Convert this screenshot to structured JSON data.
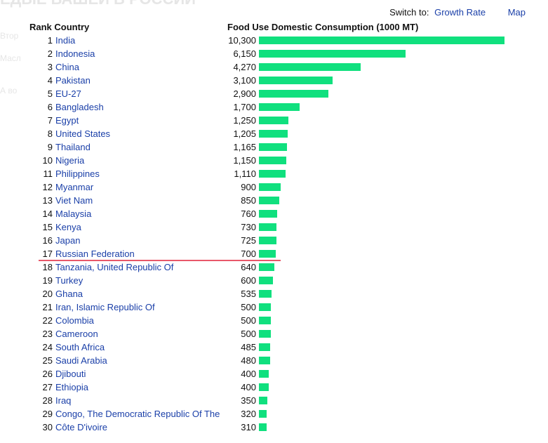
{
  "background_fragments": {
    "title": "ЕДЫЕ ВАШЕЙ В РОССИИ",
    "line1": "Втор",
    "line2": "Масл",
    "line3": "А во"
  },
  "switch": {
    "label": "Switch to:",
    "growth_rate": "Growth Rate",
    "map": "Map"
  },
  "colors": {
    "bar": "#10e07e",
    "link": "#1a3fa8",
    "cutoff_line": "#e8586a"
  },
  "chart_data": {
    "type": "bar",
    "orientation": "horizontal",
    "title": "",
    "rank_header": "Rank Country",
    "value_header": "Food Use Domestic Consumption (1000 MT)",
    "xlim": [
      0,
      10300
    ],
    "highlight_after_rank": 17,
    "rows": [
      {
        "rank": 1,
        "country": "India",
        "value": 10300,
        "label": "10,300"
      },
      {
        "rank": 2,
        "country": "Indonesia",
        "value": 6150,
        "label": "6,150"
      },
      {
        "rank": 3,
        "country": "China",
        "value": 4270,
        "label": "4,270"
      },
      {
        "rank": 4,
        "country": "Pakistan",
        "value": 3100,
        "label": "3,100"
      },
      {
        "rank": 5,
        "country": "EU-27",
        "value": 2900,
        "label": "2,900"
      },
      {
        "rank": 6,
        "country": "Bangladesh",
        "value": 1700,
        "label": "1,700"
      },
      {
        "rank": 7,
        "country": "Egypt",
        "value": 1250,
        "label": "1,250"
      },
      {
        "rank": 8,
        "country": "United States",
        "value": 1205,
        "label": "1,205"
      },
      {
        "rank": 9,
        "country": "Thailand",
        "value": 1165,
        "label": "1,165"
      },
      {
        "rank": 10,
        "country": "Nigeria",
        "value": 1150,
        "label": "1,150"
      },
      {
        "rank": 11,
        "country": "Philippines",
        "value": 1110,
        "label": "1,110"
      },
      {
        "rank": 12,
        "country": "Myanmar",
        "value": 900,
        "label": "900"
      },
      {
        "rank": 13,
        "country": "Viet Nam",
        "value": 850,
        "label": "850"
      },
      {
        "rank": 14,
        "country": "Malaysia",
        "value": 760,
        "label": "760"
      },
      {
        "rank": 15,
        "country": "Kenya",
        "value": 730,
        "label": "730"
      },
      {
        "rank": 16,
        "country": "Japan",
        "value": 725,
        "label": "725"
      },
      {
        "rank": 17,
        "country": "Russian Federation",
        "value": 700,
        "label": "700"
      },
      {
        "rank": 18,
        "country": "Tanzania, United Republic Of",
        "value": 640,
        "label": "640"
      },
      {
        "rank": 19,
        "country": "Turkey",
        "value": 600,
        "label": "600"
      },
      {
        "rank": 20,
        "country": "Ghana",
        "value": 535,
        "label": "535"
      },
      {
        "rank": 21,
        "country": "Iran, Islamic Republic Of",
        "value": 500,
        "label": "500"
      },
      {
        "rank": 22,
        "country": "Colombia",
        "value": 500,
        "label": "500"
      },
      {
        "rank": 23,
        "country": "Cameroon",
        "value": 500,
        "label": "500"
      },
      {
        "rank": 24,
        "country": "South Africa",
        "value": 485,
        "label": "485"
      },
      {
        "rank": 25,
        "country": "Saudi Arabia",
        "value": 480,
        "label": "480"
      },
      {
        "rank": 26,
        "country": "Djibouti",
        "value": 400,
        "label": "400"
      },
      {
        "rank": 27,
        "country": "Ethiopia",
        "value": 400,
        "label": "400"
      },
      {
        "rank": 28,
        "country": "Iraq",
        "value": 350,
        "label": "350"
      },
      {
        "rank": 29,
        "country": "Congo, The Democratic Republic Of The",
        "value": 320,
        "label": "320"
      },
      {
        "rank": 30,
        "country": "Côte D'ivoire",
        "value": 310,
        "label": "310"
      }
    ]
  }
}
